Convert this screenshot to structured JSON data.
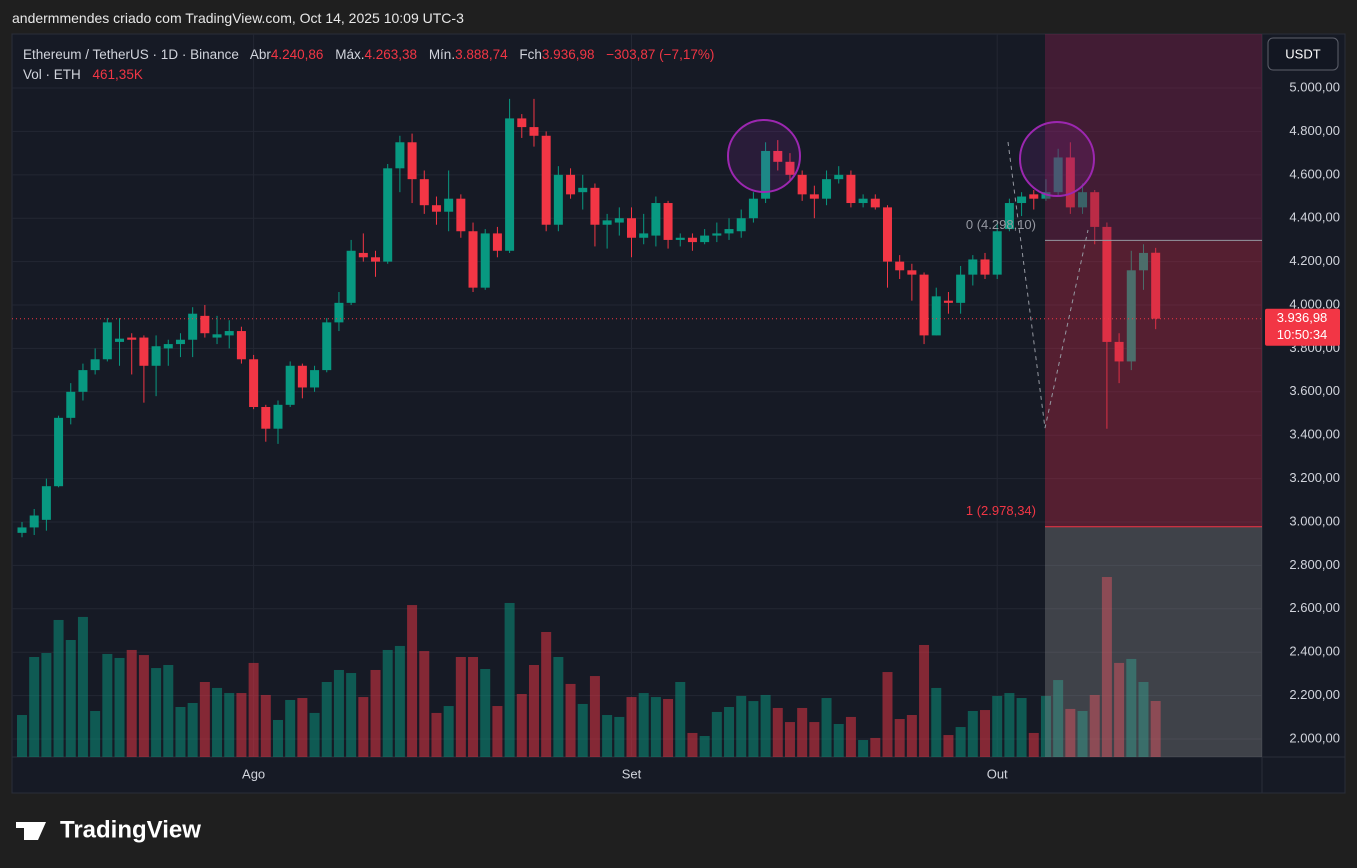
{
  "header": "andermmendes criado com TradingView.com, Oct 14, 2025 10:09 UTC-3",
  "legend": {
    "symbol": "Ethereum / TetherUS · 1D · Binance",
    "open_label": "Abr",
    "open": "4.240,86",
    "high_label": "Máx.",
    "high": "4.263,38",
    "low_label": "Mín.",
    "low": "3.888,74",
    "close_label": "Fch",
    "close": "3.936,98",
    "change": "−303,87 (−7,17%)",
    "volume_label": "Vol · ETH",
    "volume": "461,35K"
  },
  "currency_button": "USDT",
  "last_price_label": "3.936,98",
  "countdown": "10:50:34",
  "logo": "TradingView",
  "chart_data": {
    "type": "candlestick",
    "categories": [
      null,
      null,
      null,
      null,
      null,
      null,
      null,
      null,
      null,
      null,
      null,
      null,
      null,
      null,
      null,
      null,
      null,
      null,
      null,
      "Ago",
      null,
      null,
      null,
      null,
      null,
      null,
      null,
      null,
      null,
      null,
      null,
      null,
      null,
      null,
      null,
      null,
      null,
      null,
      null,
      null,
      null,
      null,
      null,
      null,
      null,
      null,
      null,
      null,
      null,
      null,
      "Set",
      null,
      null,
      null,
      null,
      null,
      null,
      null,
      null,
      null,
      null,
      null,
      null,
      null,
      null,
      null,
      null,
      null,
      null,
      null,
      null,
      null,
      null,
      null,
      null,
      null,
      null,
      null,
      null,
      null,
      "Out",
      null,
      null,
      null,
      null,
      null,
      null,
      null,
      null,
      null,
      null,
      null,
      null,
      null
    ],
    "open": [
      2950,
      2975,
      3010,
      3165,
      3480,
      3600,
      3700,
      3750,
      3830,
      3850,
      3850,
      3720,
      3800,
      3820,
      3840,
      3950,
      3850,
      3860,
      3880,
      3750,
      3530,
      3430,
      3540,
      3720,
      3620,
      3700,
      3920,
      4010,
      4240,
      4220,
      4200,
      4630,
      4750,
      4580,
      4460,
      4430,
      4490,
      4340,
      4080,
      4330,
      4250,
      4860,
      4820,
      4780,
      4370,
      4600,
      4520,
      4540,
      4370,
      4380,
      4400,
      4310,
      4320,
      4470,
      4300,
      4310,
      4290,
      4320,
      4330,
      4340,
      4400,
      4490,
      4710,
      4660,
      4600,
      4510,
      4490,
      4580,
      4600,
      4470,
      4490,
      4450,
      4200,
      4160,
      4140,
      3860,
      4020,
      4010,
      4140,
      4210,
      4140,
      4350,
      4470,
      4510,
      4490,
      4520,
      4680,
      4450,
      4520,
      4360,
      3830,
      3740,
      4160,
      4240.86
    ],
    "high": [
      3000,
      3060,
      3200,
      3490,
      3640,
      3730,
      3800,
      3940,
      3940,
      3870,
      3860,
      3860,
      3840,
      3870,
      3990,
      4000,
      3950,
      3930,
      3900,
      3770,
      3540,
      3560,
      3740,
      3730,
      3720,
      3940,
      4060,
      4300,
      4330,
      4250,
      4650,
      4780,
      4790,
      4620,
      4500,
      4620,
      4510,
      4380,
      4350,
      4360,
      4950,
      4880,
      4950,
      4800,
      4640,
      4630,
      4600,
      4560,
      4420,
      4450,
      4450,
      4420,
      4500,
      4480,
      4330,
      4330,
      4350,
      4380,
      4400,
      4440,
      4520,
      4750,
      4760,
      4700,
      4620,
      4550,
      4620,
      4640,
      4620,
      4510,
      4510,
      4460,
      4230,
      4190,
      4150,
      4080,
      4060,
      4180,
      4230,
      4240,
      4380,
      4490,
      4520,
      4530,
      4580,
      4720,
      4750,
      4560,
      4530,
      4380,
      3870,
      4250,
      4280,
      4263.38
    ],
    "low": [
      2930,
      2940,
      2960,
      3160,
      3450,
      3560,
      3680,
      3740,
      3720,
      3680,
      3550,
      3580,
      3720,
      3760,
      3760,
      3850,
      3820,
      3800,
      3730,
      3520,
      3370,
      3360,
      3530,
      3570,
      3600,
      3690,
      3880,
      4000,
      4200,
      4130,
      4190,
      4520,
      4470,
      4420,
      4370,
      4340,
      4310,
      4060,
      4070,
      4220,
      4240,
      4770,
      4730,
      4340,
      4340,
      4490,
      4440,
      4270,
      4260,
      4320,
      4220,
      4280,
      4270,
      4260,
      4270,
      4250,
      4280,
      4290,
      4300,
      4310,
      4380,
      4470,
      4620,
      4570,
      4480,
      4400,
      4460,
      4560,
      4450,
      4450,
      4440,
      4080,
      4120,
      4020,
      3820,
      3860,
      3960,
      3960,
      4090,
      4120,
      4120,
      4340,
      4410,
      4440,
      4480,
      4500,
      4420,
      4420,
      4280,
      3430,
      3640,
      3700,
      4070,
      3888.74
    ],
    "close": [
      2975,
      3030,
      3165,
      3480,
      3600,
      3700,
      3750,
      3920,
      3845,
      3840,
      3720,
      3810,
      3820,
      3840,
      3960,
      3870,
      3865,
      3880,
      3750,
      3530,
      3430,
      3540,
      3720,
      3620,
      3700,
      3920,
      4010,
      4250,
      4220,
      4200,
      4630,
      4750,
      4580,
      4460,
      4430,
      4490,
      4340,
      4080,
      4330,
      4250,
      4860,
      4820,
      4780,
      4370,
      4600,
      4510,
      4540,
      4370,
      4390,
      4400,
      4310,
      4330,
      4470,
      4300,
      4310,
      4290,
      4320,
      4330,
      4350,
      4400,
      4490,
      4710,
      4660,
      4600,
      4510,
      4490,
      4580,
      4600,
      4470,
      4490,
      4450,
      4200,
      4160,
      4140,
      3860,
      4040,
      4010,
      4140,
      4210,
      4140,
      4340,
      4470,
      4500,
      4490,
      4520,
      4680,
      4450,
      4520,
      4360,
      3830,
      3740,
      4160,
      4240,
      3936.98
    ],
    "volume": [
      346,
      824,
      857,
      1129,
      964,
      1154,
      379,
      849,
      816,
      882,
      840,
      733,
      758,
      412,
      445,
      618,
      569,
      527,
      527,
      775,
      511,
      305,
      470,
      486,
      363,
      618,
      717,
      692,
      494,
      717,
      882,
      915,
      1252,
      873,
      363,
      420,
      824,
      824,
      725,
      420,
      1269,
      519,
      758,
      1030,
      824,
      602,
      437,
      667,
      346,
      330,
      494,
      527,
      494,
      478,
      618,
      198,
      173,
      371,
      412,
      503,
      461,
      511,
      404,
      288,
      404,
      288,
      486,
      272,
      330,
      140,
      157,
      700,
      313,
      346,
      923,
      569,
      181,
      247,
      379,
      387,
      503,
      527,
      486,
      198,
      503,
      634,
      396,
      379,
      511,
      1483,
      775,
      808,
      618,
      461.35
    ],
    "up_color": "#089981",
    "down_color": "#f23645",
    "ylim": [
      1917,
      5249
    ],
    "volume_ylim": [
      0,
      5957
    ],
    "yticks": [
      {
        "value": 2000,
        "label": "2.000,00"
      },
      {
        "value": 2200,
        "label": "2.200,00"
      },
      {
        "value": 2400,
        "label": "2.400,00"
      },
      {
        "value": 2600,
        "label": "2.600,00"
      },
      {
        "value": 2800,
        "label": "2.800,00"
      },
      {
        "value": 3000,
        "label": "3.000,00"
      },
      {
        "value": 3200,
        "label": "3.200,00"
      },
      {
        "value": 3400,
        "label": "3.400,00"
      },
      {
        "value": 3600,
        "label": "3.600,00"
      },
      {
        "value": 3800,
        "label": "3.800,00"
      },
      {
        "value": 4000,
        "label": "4.000,00"
      },
      {
        "value": 4200,
        "label": "4.200,00"
      },
      {
        "value": 4400,
        "label": "4.400,00"
      },
      {
        "value": 4600,
        "label": "4.600,00"
      },
      {
        "value": 4800,
        "label": "4.800,00"
      },
      {
        "value": 5000,
        "label": "5.000,00"
      }
    ],
    "grid": true,
    "fib_levels": [
      {
        "value": 4298.1,
        "label": "0 (4.298,10)"
      },
      {
        "value": 2978.34,
        "label": "1 (2.978,34)"
      }
    ]
  }
}
